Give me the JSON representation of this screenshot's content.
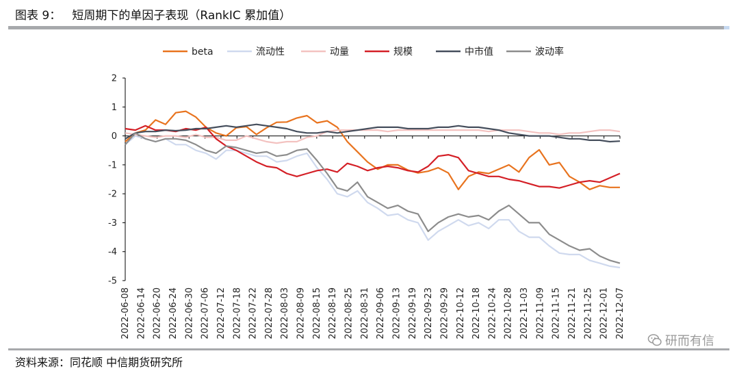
{
  "header": {
    "title": "图表 9：   短周期下的单因子表现（RankIC 累加值）"
  },
  "footer": {
    "source": "资料来源：同花顺   中信期货研究所"
  },
  "watermark": {
    "text": "研而有信"
  },
  "colors": {
    "beta": "#e8731e",
    "liudongxing": "#cfd9ee",
    "dongliang": "#f3c2c0",
    "guimo": "#d41f26",
    "zhongshizhi": "#454e5c",
    "bodonglv": "#8c8c8c",
    "axis": "#000000"
  },
  "chart_data": {
    "type": "line",
    "title": "短周期下的单因子表现（RankIC 累加值）",
    "xlabel": "",
    "ylabel": "",
    "ylim": [
      -5,
      2
    ],
    "yticks": [
      "2",
      "1",
      "0",
      "-1",
      "-2",
      "-3",
      "-4",
      "-5"
    ],
    "grid": false,
    "legend_position": "top",
    "x_tick_labels": [
      "2022-06-08",
      "2022-06-14",
      "2022-06-20",
      "2022-06-24",
      "2022-06-30",
      "2022-07-06",
      "2022-07-12",
      "2022-07-18",
      "2022-07-22",
      "2022-07-28",
      "2022-08-03",
      "2022-08-09",
      "2022-08-15",
      "2022-08-19",
      "2022-08-25",
      "2022-08-31",
      "2022-09-06",
      "2022-09-13",
      "2022-09-19",
      "2022-09-23",
      "2022-09-29",
      "2022-10-12",
      "2022-10-18",
      "2022-10-24",
      "2022-10-28",
      "2022-11-03",
      "2022-11-09",
      "2022-11-15",
      "2022-11-21",
      "2022-11-25",
      "2022-12-01",
      "2022-12-07"
    ],
    "series": [
      {
        "name": "beta",
        "key": "beta",
        "values": [
          -0.2,
          0.1,
          0.2,
          0.55,
          0.4,
          0.8,
          0.85,
          0.65,
          0.3,
          0.1,
          0.0,
          0.28,
          0.32,
          0.05,
          0.28,
          0.47,
          0.48,
          0.62,
          0.7,
          0.45,
          0.52,
          0.3,
          -0.2,
          -0.55,
          -0.9,
          -1.15,
          -1.0,
          -1.0,
          -1.18,
          -1.28,
          -1.22,
          -1.1,
          -1.28,
          -1.85,
          -1.4,
          -1.25,
          -1.3,
          -1.15,
          -1.0,
          -1.25,
          -0.75,
          -0.48,
          -1.0,
          -0.92,
          -1.4,
          -1.6,
          -1.85,
          -1.72,
          -1.78,
          -1.78
        ]
      },
      {
        "name": "流动性",
        "key": "liudongxing",
        "values": [
          -0.3,
          0.0,
          -0.1,
          -0.2,
          -0.1,
          -0.3,
          -0.3,
          -0.5,
          -0.6,
          -0.8,
          -0.5,
          -0.5,
          -0.6,
          -0.7,
          -0.7,
          -0.9,
          -0.85,
          -0.7,
          -0.6,
          -1.1,
          -1.5,
          -2.0,
          -2.1,
          -1.9,
          -2.3,
          -2.5,
          -2.75,
          -2.7,
          -2.9,
          -3.0,
          -3.6,
          -3.3,
          -3.1,
          -2.9,
          -3.1,
          -3.0,
          -3.2,
          -2.9,
          -2.9,
          -3.3,
          -3.5,
          -3.5,
          -3.8,
          -4.05,
          -4.1,
          -4.1,
          -4.3,
          -4.4,
          -4.5,
          -4.55
        ]
      },
      {
        "name": "动量",
        "key": "dongliang",
        "values": [
          0.1,
          0.05,
          0.0,
          -0.05,
          0.0,
          0.0,
          -0.05,
          0.05,
          -0.05,
          -0.05,
          -0.15,
          -0.15,
          0.0,
          -0.1,
          -0.2,
          -0.25,
          -0.2,
          -0.2,
          -0.05,
          0.0,
          0.15,
          0.2,
          0.2,
          0.2,
          0.2,
          0.2,
          0.15,
          0.2,
          0.2,
          0.2,
          0.2,
          0.2,
          0.2,
          0.2,
          0.2,
          0.2,
          0.15,
          0.2,
          0.2,
          0.2,
          0.15,
          0.1,
          0.1,
          0.05,
          0.1,
          0.1,
          0.15,
          0.2,
          0.2,
          0.15
        ]
      },
      {
        "name": "规模",
        "key": "guimo",
        "values": [
          0.25,
          0.2,
          0.35,
          0.2,
          0.2,
          0.15,
          0.25,
          0.2,
          0.3,
          -0.1,
          -0.35,
          -0.5,
          -0.7,
          -0.9,
          -1.05,
          -1.1,
          -1.3,
          -1.4,
          -1.3,
          -1.2,
          -1.15,
          -1.25,
          -0.95,
          -1.05,
          -1.2,
          -1.1,
          -1.05,
          -1.1,
          -1.2,
          -1.25,
          -1.05,
          -0.7,
          -0.65,
          -0.75,
          -1.2,
          -1.3,
          -1.4,
          -1.4,
          -1.5,
          -1.55,
          -1.65,
          -1.75,
          -1.75,
          -1.8,
          -1.7,
          -1.6,
          -1.55,
          -1.6,
          -1.45,
          -1.3
        ]
      },
      {
        "name": "中市值",
        "key": "zhongshizhi",
        "values": [
          -0.1,
          0.1,
          0.15,
          0.15,
          0.2,
          0.18,
          0.2,
          0.25,
          0.25,
          0.3,
          0.35,
          0.3,
          0.35,
          0.4,
          0.35,
          0.3,
          0.25,
          0.15,
          0.1,
          0.1,
          0.15,
          0.1,
          0.15,
          0.2,
          0.25,
          0.3,
          0.3,
          0.3,
          0.25,
          0.25,
          0.25,
          0.3,
          0.3,
          0.35,
          0.3,
          0.3,
          0.25,
          0.2,
          0.1,
          0.05,
          0.0,
          0.0,
          0.0,
          -0.05,
          -0.1,
          -0.1,
          -0.15,
          -0.15,
          -0.2,
          -0.18
        ]
      },
      {
        "name": "波动率",
        "key": "bodonglv",
        "values": [
          -0.3,
          0.1,
          -0.1,
          -0.2,
          -0.1,
          -0.1,
          -0.15,
          -0.3,
          -0.5,
          -0.6,
          -0.35,
          -0.4,
          -0.5,
          -0.6,
          -0.55,
          -0.7,
          -0.65,
          -0.5,
          -0.45,
          -0.85,
          -1.3,
          -1.8,
          -1.9,
          -1.6,
          -2.1,
          -2.3,
          -2.5,
          -2.4,
          -2.6,
          -2.7,
          -3.3,
          -3.0,
          -2.8,
          -2.7,
          -2.8,
          -2.75,
          -2.9,
          -2.6,
          -2.4,
          -2.7,
          -3.0,
          -3.0,
          -3.4,
          -3.6,
          -3.8,
          -3.95,
          -3.9,
          -4.15,
          -4.3,
          -4.4
        ]
      }
    ]
  }
}
